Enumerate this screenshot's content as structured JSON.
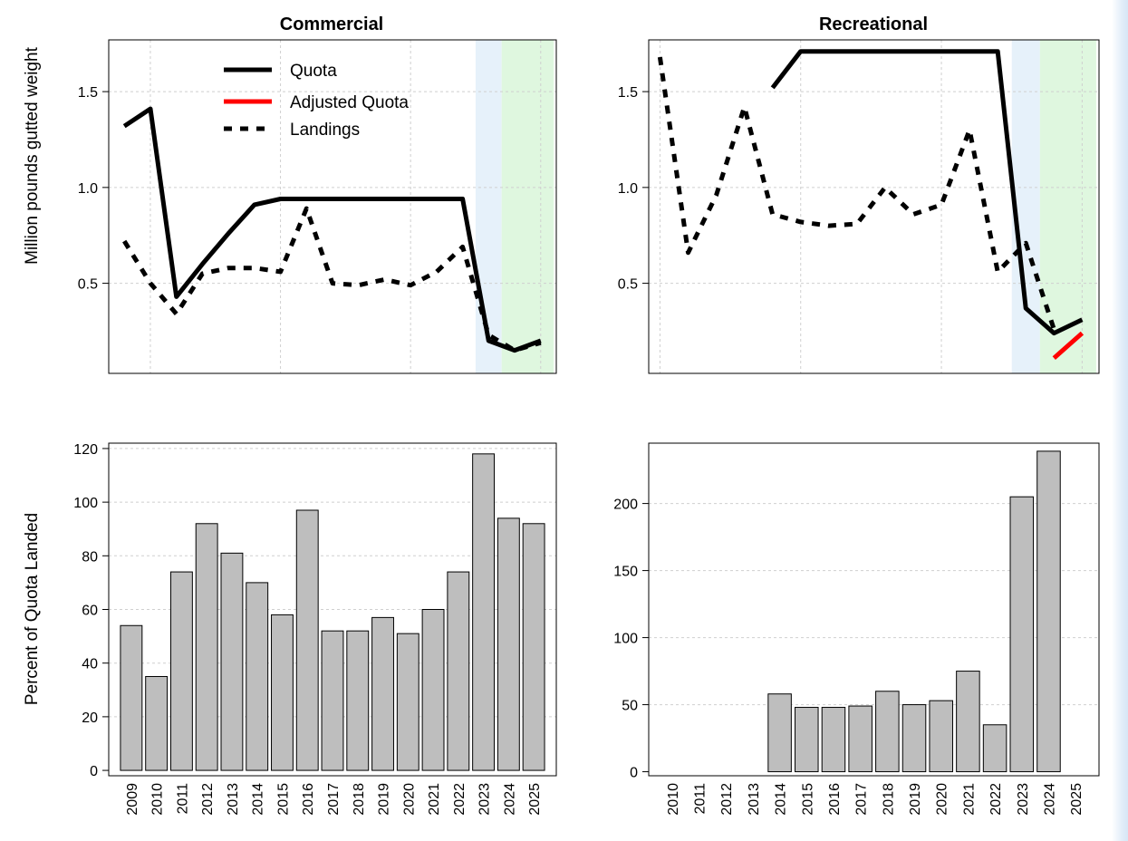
{
  "colors": {
    "quota": "#000000",
    "adjusted": "#ff0000",
    "landings": "#000000",
    "bar_fill": "#bebebe",
    "shade_blue": "#e6f1fa",
    "shade_green": "#dff7df",
    "grid": "#cfcfcf"
  },
  "legend": {
    "quota": "Quota",
    "adjusted": "Adjusted Quota",
    "landings": "Landings"
  },
  "ylabels": {
    "top": "Million pounds gutted weight",
    "bottom": "Percent of Quota Landed"
  },
  "chart_data": [
    {
      "type": "line",
      "title": "Commercial",
      "ylabel": "Million pounds gutted weight",
      "ylim": [
        0.03,
        1.77
      ],
      "yticks": [
        "0.5",
        "1.0",
        "1.5"
      ],
      "shaded_periods": [
        {
          "from": 2022.5,
          "to": 2023.5,
          "color": "blue"
        },
        {
          "from": 2023.5,
          "to": 2025.5,
          "color": "green"
        }
      ],
      "series": [
        {
          "name": "Quota",
          "x": [
            2009,
            2010,
            2011,
            2012,
            2013,
            2014,
            2015,
            2016,
            2017,
            2018,
            2019,
            2020,
            2021,
            2022,
            2023,
            2024,
            2025
          ],
          "y": [
            1.32,
            1.41,
            0.43,
            0.6,
            0.76,
            0.91,
            0.94,
            0.94,
            0.94,
            0.94,
            0.94,
            0.94,
            0.94,
            0.94,
            0.2,
            0.15,
            0.2
          ]
        },
        {
          "name": "Landings",
          "x": [
            2009,
            2010,
            2011,
            2012,
            2013,
            2014,
            2015,
            2016,
            2017,
            2018,
            2019,
            2020,
            2021,
            2022,
            2023,
            2024,
            2025
          ],
          "y": [
            0.72,
            0.5,
            0.34,
            0.55,
            0.58,
            0.58,
            0.56,
            0.89,
            0.5,
            0.49,
            0.52,
            0.49,
            0.56,
            0.69,
            0.23,
            0.15,
            0.19
          ]
        }
      ]
    },
    {
      "type": "line",
      "title": "Recreational",
      "ylabel": "",
      "ylim": [
        0.03,
        1.77
      ],
      "yticks": [
        "0.5",
        "1.0",
        "1.5"
      ],
      "shaded_periods": [
        {
          "from": 2022.5,
          "to": 2023.5,
          "color": "blue"
        },
        {
          "from": 2023.5,
          "to": 2025.5,
          "color": "green"
        }
      ],
      "series": [
        {
          "name": "Quota",
          "x": [
            2014,
            2015,
            2016,
            2017,
            2018,
            2019,
            2020,
            2021,
            2022,
            2023,
            2024,
            2025
          ],
          "y": [
            1.52,
            1.71,
            1.71,
            1.71,
            1.71,
            1.71,
            1.71,
            1.71,
            1.71,
            0.37,
            0.24,
            0.31
          ]
        },
        {
          "name": "Adjusted Quota",
          "x": [
            2024,
            2025
          ],
          "y": [
            0.11,
            0.24
          ]
        },
        {
          "name": "Landings",
          "x": [
            2010,
            2011,
            2012,
            2013,
            2014,
            2015,
            2016,
            2017,
            2018,
            2019,
            2020,
            2021,
            2022,
            2023,
            2024
          ],
          "y": [
            1.68,
            0.66,
            0.96,
            1.42,
            0.86,
            0.82,
            0.8,
            0.81,
            1.0,
            0.86,
            0.91,
            1.3,
            0.56,
            0.71,
            0.26
          ]
        }
      ]
    },
    {
      "type": "bar",
      "title": "",
      "ylabel": "Percent of Quota Landed",
      "ylim": [
        -2,
        122
      ],
      "yticks": [
        "0",
        "20",
        "40",
        "60",
        "80",
        "100",
        "120"
      ],
      "categories": [
        "2009",
        "2010",
        "2011",
        "2012",
        "2013",
        "2014",
        "2015",
        "2016",
        "2017",
        "2018",
        "2019",
        "2020",
        "2021",
        "2022",
        "2023",
        "2024",
        "2025"
      ],
      "values": [
        54,
        35,
        74,
        92,
        81,
        70,
        58,
        97,
        52,
        52,
        57,
        51,
        60,
        74,
        118,
        94,
        92
      ]
    },
    {
      "type": "bar",
      "title": "",
      "ylabel": "",
      "ylim": [
        -3,
        245
      ],
      "yticks": [
        "0",
        "50",
        "100",
        "150",
        "200"
      ],
      "categories": [
        "2010",
        "2011",
        "2012",
        "2013",
        "2014",
        "2015",
        "2016",
        "2017",
        "2018",
        "2019",
        "2020",
        "2021",
        "2022",
        "2023",
        "2024",
        "2025"
      ],
      "values": [
        null,
        null,
        null,
        null,
        58,
        48,
        48,
        49,
        60,
        50,
        53,
        75,
        35,
        205,
        239,
        null
      ]
    }
  ]
}
